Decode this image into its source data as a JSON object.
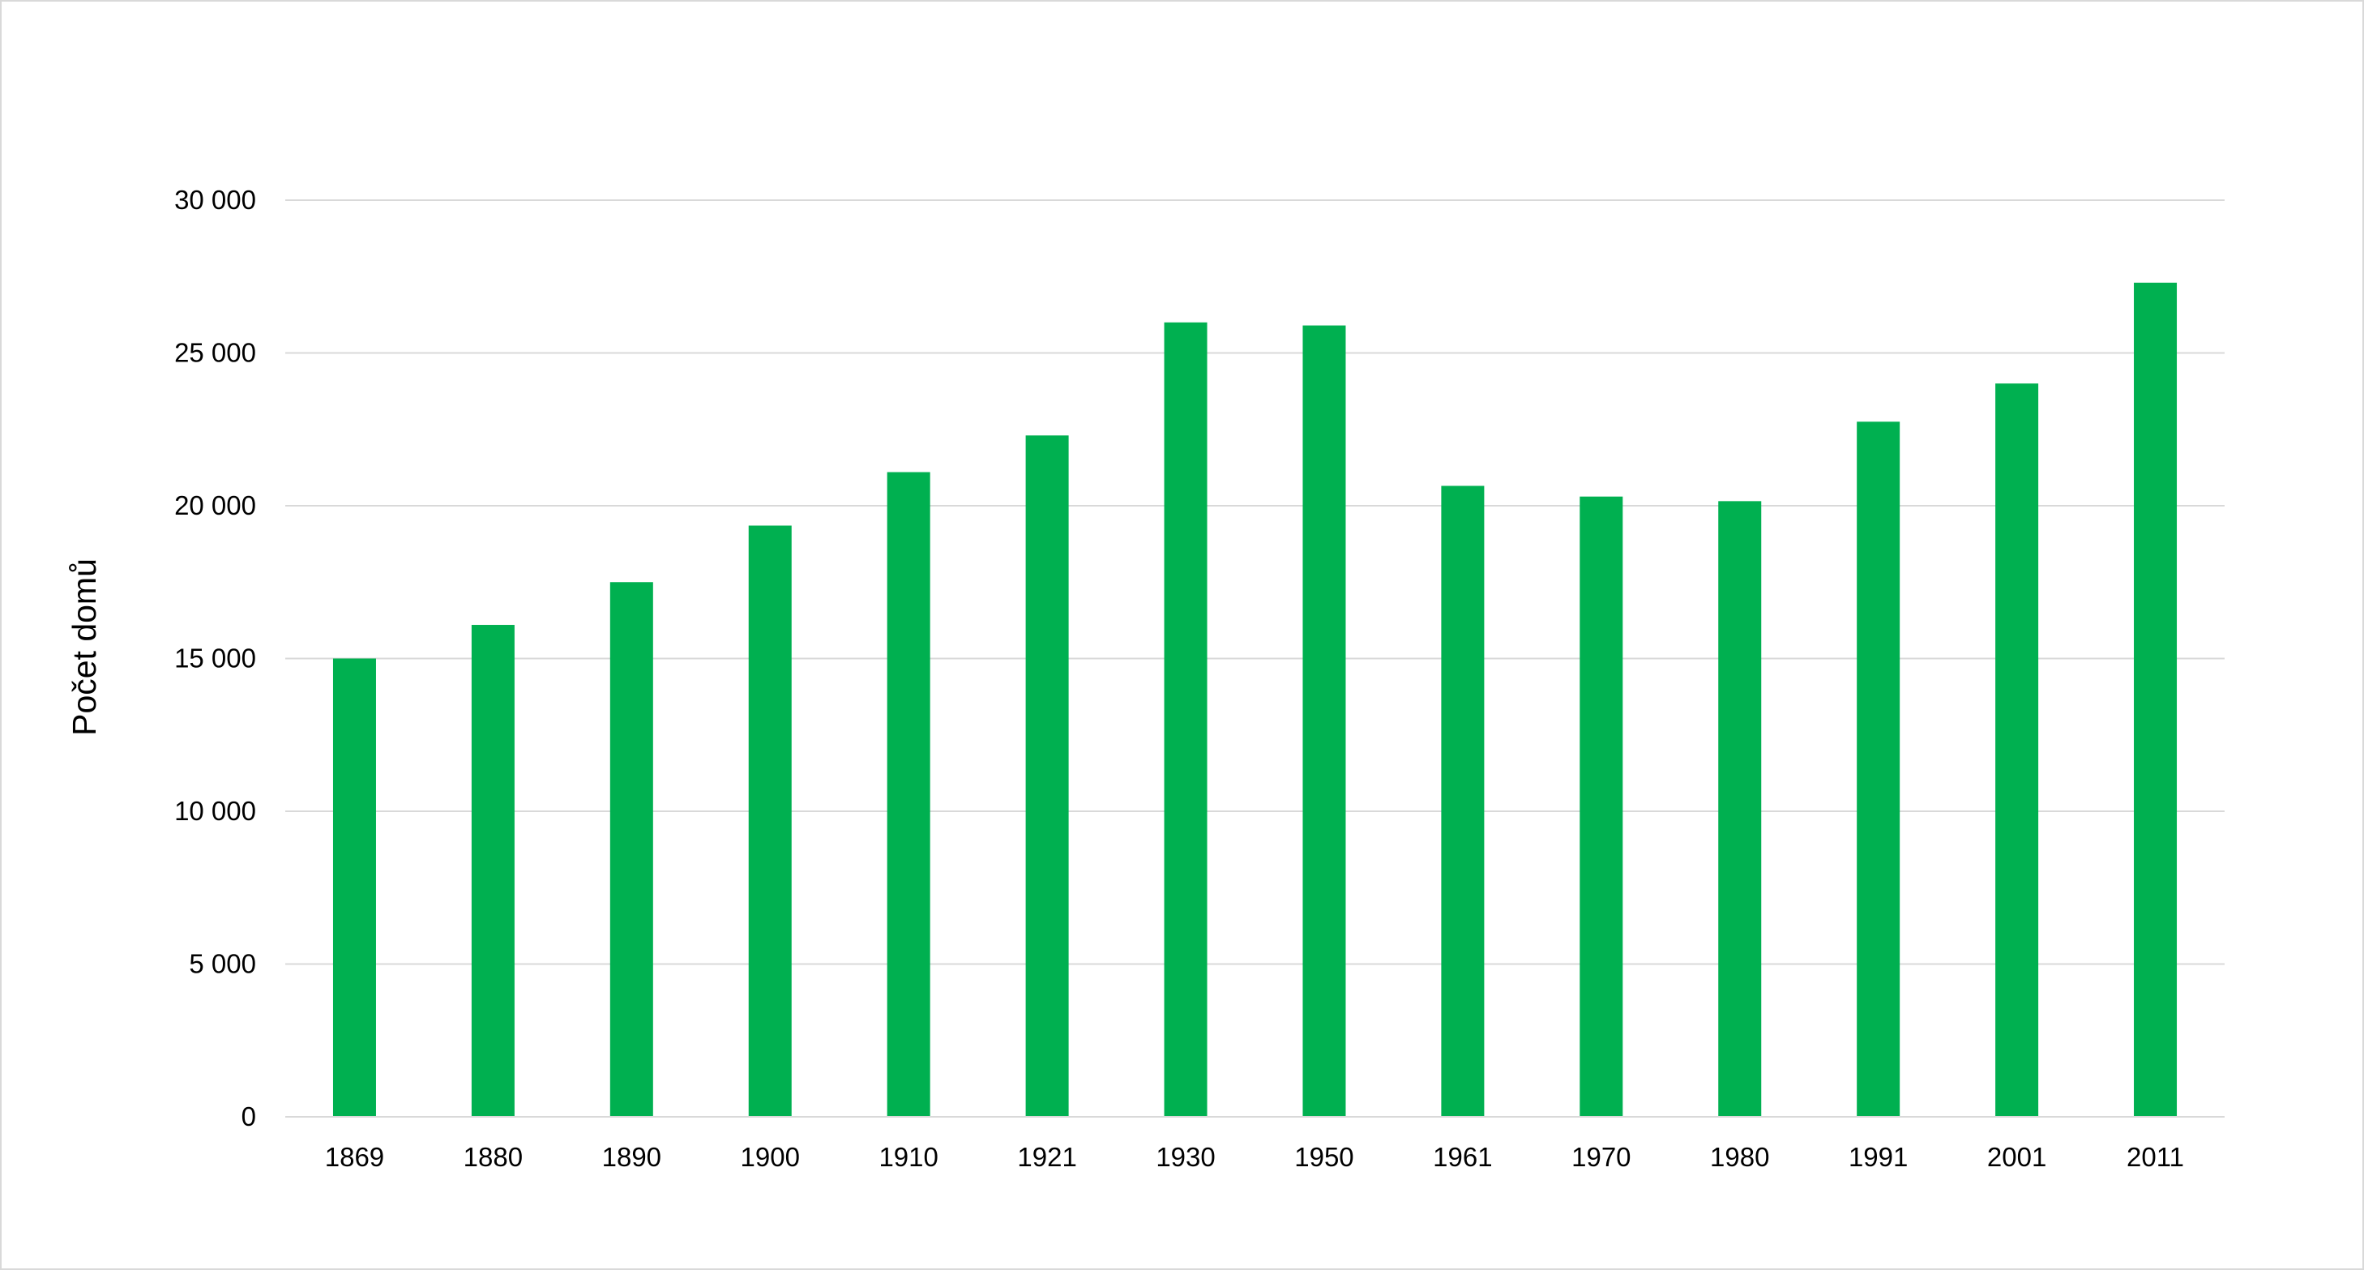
{
  "chart_data": {
    "type": "bar",
    "title": "",
    "xlabel": "",
    "ylabel": "Počet domů",
    "categories": [
      "1869",
      "1880",
      "1890",
      "1900",
      "1910",
      "1921",
      "1930",
      "1950",
      "1961",
      "1970",
      "1980",
      "1991",
      "2001",
      "2011"
    ],
    "series": [
      {
        "values": [
          15000,
          16100,
          17500,
          19350,
          21100,
          22300,
          26000,
          25900,
          20650,
          20300,
          20150,
          22750,
          24000,
          27300
        ]
      }
    ],
    "ylim": [
      0,
      30000
    ],
    "yticks": [
      0,
      5000,
      10000,
      15000,
      20000,
      25000,
      30000
    ],
    "ytick_labels": [
      "0",
      "5 000",
      "10 000",
      "15 000",
      "20 000",
      "25 000",
      "30 000"
    ],
    "grid": true,
    "legend": "none",
    "colors": {
      "bar": "#00b050",
      "grid": "#d9d9d9",
      "axis": "#d9d9d9",
      "text": "#000000"
    }
  }
}
